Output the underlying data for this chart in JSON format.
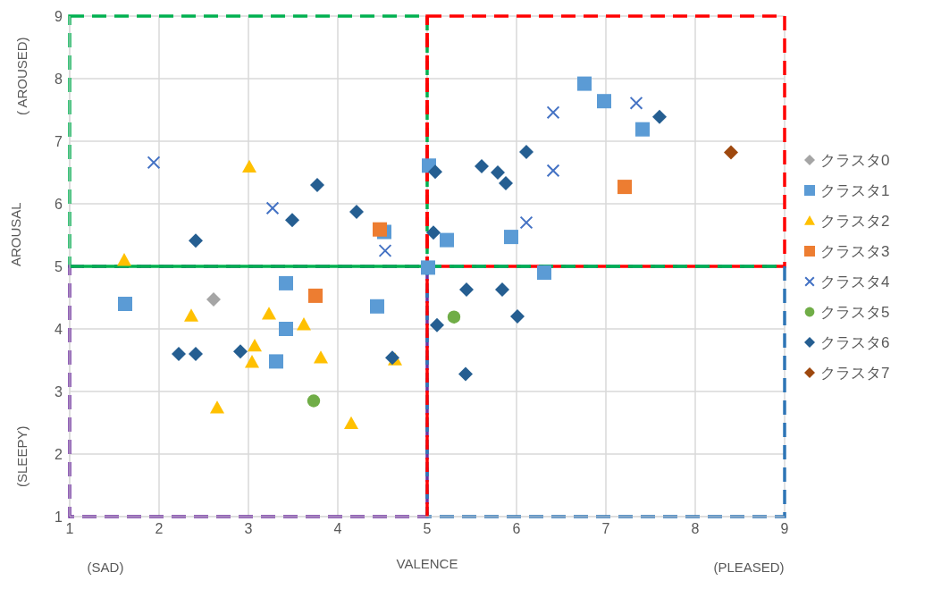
{
  "chart_data": {
    "type": "scatter",
    "xlabel": "VALENCE",
    "ylabel": "AROUSAL",
    "annotations": [
      "( AROUSED)",
      "(SLEEPY)",
      "(SAD)",
      "(PLEASED)"
    ],
    "xlim": [
      1,
      9
    ],
    "xticks": [
      1,
      2,
      3,
      4,
      5,
      6,
      7,
      8,
      9
    ],
    "ylim": [
      1,
      9
    ],
    "yticks": [
      1,
      2,
      3,
      4,
      5,
      6,
      7,
      8,
      9
    ],
    "grid": true,
    "legend": "right",
    "ref_lines": [
      {
        "axis": "x",
        "value": 5,
        "color": "#ff0000",
        "line_style": "dashed"
      },
      {
        "axis": "y",
        "value": 5,
        "color": "#00b050",
        "line_style": "dashed"
      }
    ],
    "series": [
      {
        "name": "クラスタ0",
        "color": "#a5a5a5",
        "marker": "diamond",
        "x": [
          2.61
        ],
        "values": [
          4.47
        ]
      },
      {
        "name": "クラスタ1",
        "color": "#5b9bd5",
        "marker": "square",
        "x": [
          1.62,
          3.42,
          3.42,
          3.31,
          4.44,
          4.52,
          5.02,
          5.01,
          5.22,
          5.94,
          6.31,
          6.76,
          6.98,
          7.41
        ],
        "values": [
          4.4,
          4.73,
          4.0,
          3.48,
          4.36,
          5.55,
          6.61,
          4.98,
          5.42,
          5.47,
          4.9,
          7.92,
          7.64,
          7.19
        ]
      },
      {
        "name": "クラスタ2",
        "color": "#ffc000",
        "marker": "triangle",
        "x": [
          1.61,
          3.01,
          2.36,
          3.23,
          3.62,
          3.07,
          3.04,
          3.81,
          4.64,
          2.65,
          4.15
        ],
        "values": [
          5.1,
          6.59,
          4.21,
          4.24,
          4.07,
          3.73,
          3.47,
          3.54,
          3.51,
          2.74,
          2.49
        ]
      },
      {
        "name": "クラスタ3",
        "color": "#ed7d31",
        "marker": "square",
        "x": [
          4.47,
          3.75,
          7.21
        ],
        "values": [
          5.59,
          4.53,
          6.27
        ]
      },
      {
        "name": "クラスタ4",
        "color": "#4472c4",
        "marker": "cross",
        "x": [
          1.94,
          3.27,
          4.53,
          6.41,
          7.34,
          6.41,
          6.11
        ],
        "values": [
          6.66,
          5.93,
          5.25,
          7.46,
          7.61,
          6.53,
          5.7
        ]
      },
      {
        "name": "クラスタ5",
        "color": "#70ad47",
        "marker": "circle",
        "x": [
          3.73,
          5.3
        ],
        "values": [
          2.85,
          4.19
        ]
      },
      {
        "name": "クラスタ6",
        "color": "#255e91",
        "marker": "diamond",
        "x": [
          2.41,
          3.77,
          3.49,
          4.21,
          5.09,
          5.07,
          2.22,
          2.41,
          2.91,
          4.61,
          5.61,
          5.79,
          5.88,
          6.11,
          7.6,
          5.44,
          5.84,
          6.01,
          5.11,
          5.43
        ],
        "values": [
          5.41,
          6.3,
          5.74,
          5.87,
          6.51,
          5.54,
          3.6,
          3.6,
          3.64,
          3.54,
          6.6,
          6.5,
          6.33,
          6.83,
          7.39,
          4.63,
          4.63,
          4.2,
          4.06,
          3.28
        ]
      },
      {
        "name": "クラスタ7",
        "color": "#9e480e",
        "marker": "diamond",
        "x": [
          8.4
        ],
        "values": [
          6.82
        ]
      }
    ]
  }
}
